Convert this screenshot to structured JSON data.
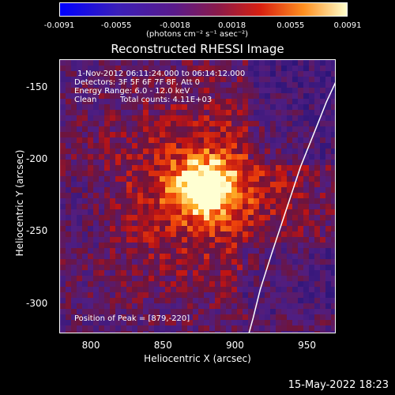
{
  "chart_data": {
    "type": "heatmap",
    "title": "Reconstructed RHESSI Image",
    "xlabel": "Heliocentric X (arcsec)",
    "ylabel": "Heliocentric Y (arcsec)",
    "xlim": [
      778,
      970
    ],
    "ylim": [
      -321,
      -131
    ],
    "x_ticks": [
      "800",
      "850",
      "900",
      "950"
    ],
    "y_ticks": [
      "-150",
      "-200",
      "-250",
      "-300"
    ],
    "x_tick_values": [
      800,
      850,
      900,
      950
    ],
    "y_tick_values": [
      -150,
      -200,
      -250,
      -300
    ],
    "colorbar": {
      "min": -0.0091,
      "max": 0.0091,
      "tick_labels": [
        "-0.0091",
        "-0.0055",
        "-0.0018",
        "0.0018",
        "0.0055",
        "0.0091"
      ],
      "tick_values": [
        -0.0091,
        -0.0055,
        -0.0018,
        0.0018,
        0.0055,
        0.0091
      ],
      "units": "(photons cm⁻² s⁻¹ asec⁻²)"
    },
    "annotations": {
      "time_range": "1-Nov-2012 06:11:24.000 to 06:14:12.000",
      "detectors": "Detectors: 3F 5F 6F 7F 8F, Att 0",
      "energy_range": "Energy Range: 6.0 - 12.0 keV",
      "method": "Clean",
      "total_counts": "Total counts: 4.11E+03",
      "peak": "Position of Peak = [879,-220]"
    },
    "peak_position": [
      879,
      -220
    ],
    "limb": [
      [
        970,
        -145
      ],
      [
        963,
        -160
      ],
      [
        955,
        -180
      ],
      [
        945,
        -205
      ],
      [
        935,
        -235
      ],
      [
        925,
        -265
      ],
      [
        917,
        -290
      ],
      [
        912,
        -310
      ],
      [
        909,
        -321
      ]
    ]
  },
  "footer": {
    "timestamp": "15-May-2022 18:23"
  },
  "colors": {
    "background": "#000000",
    "text": "#ffffff",
    "limb": "#ffffff"
  }
}
